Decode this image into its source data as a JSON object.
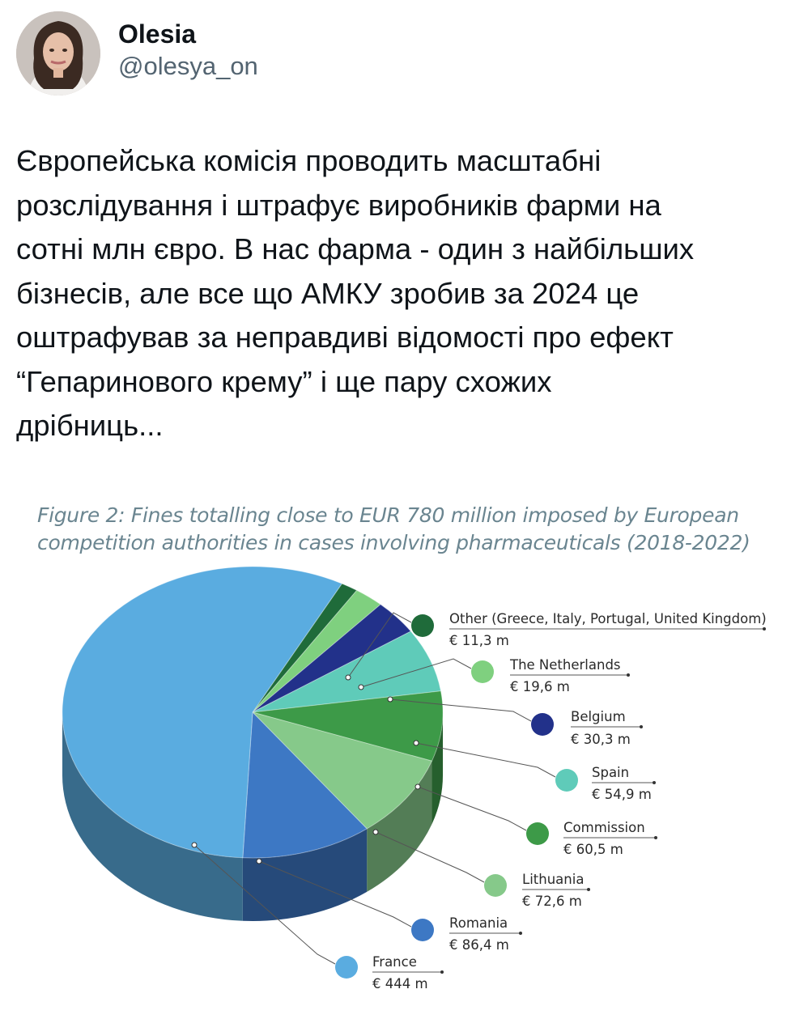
{
  "tweet": {
    "display_name": "Olesia",
    "handle": "@olesya_on",
    "text": "Європейська комісія проводить масштабні\nрозслідування і штрафує виробників фарми на\nсотні млн євро. В нас фарма - один з найбільших\nбізнесів, але все що АМКУ зробив за 2024 це\nоштрафував за неправдиві відомості про ефект\n“Гепаринового крему” і ще пару схожих\nдрібниць..."
  },
  "chart_data": {
    "type": "pie",
    "title": "Figure 2: Fines totalling close to EUR 780 million imposed by European competition authorities in cases involving pharmaceuticals (2018-2022)",
    "title_lines": [
      "Figure 2: Fines totalling close to EUR 780 million imposed by European",
      "competition authorities in cases involving pharmaceuticals (2018-2022)"
    ],
    "unit": "€ m",
    "slices": [
      {
        "label": "France",
        "value": 444,
        "value_label": "€ 444 m",
        "color": "#5aace0"
      },
      {
        "label": "Romania",
        "value": 86.4,
        "value_label": "€ 86,4 m",
        "color": "#3d78c4"
      },
      {
        "label": "Lithuania",
        "value": 72.6,
        "value_label": "€ 72,6 m",
        "color": "#86c98a"
      },
      {
        "label": "Commission",
        "value": 60.5,
        "value_label": "€ 60,5 m",
        "color": "#3d9a48"
      },
      {
        "label": "Spain",
        "value": 54.9,
        "value_label": "€ 54,9 m",
        "color": "#5fcbb9"
      },
      {
        "label": "Belgium",
        "value": 30.3,
        "value_label": "€ 30,3 m",
        "color": "#22318a"
      },
      {
        "label": "The Netherlands",
        "value": 19.6,
        "value_label": "€ 19,6 m",
        "color": "#7fd07f"
      },
      {
        "label": "Other (Greece, Italy, Portugal, United Kingdom)",
        "value": 11.3,
        "value_label": "€ 11,3 m",
        "color": "#1f6b3a"
      }
    ]
  }
}
